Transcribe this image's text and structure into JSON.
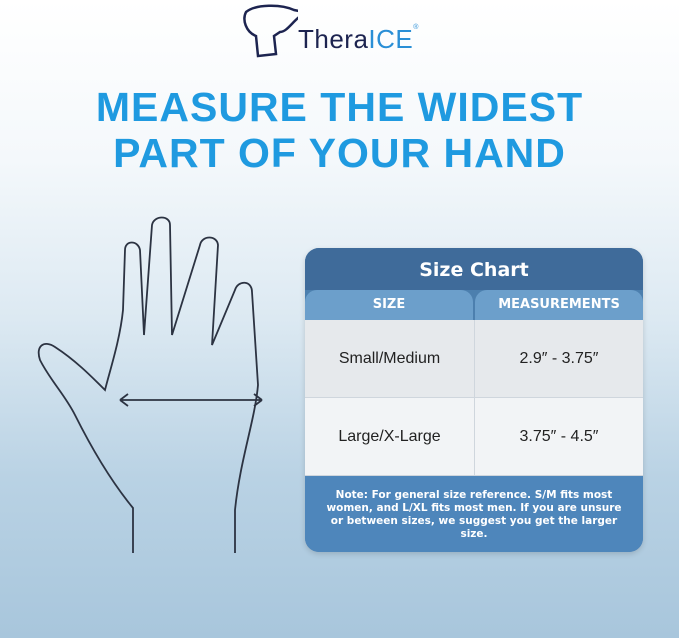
{
  "brand": {
    "name_part1": "Thera",
    "name_part2": "ICE",
    "registered": "®"
  },
  "headline": {
    "line1": "MEASURE THE WIDEST",
    "line2": "PART OF YOUR HAND"
  },
  "size_chart": {
    "title": "Size Chart",
    "columns": [
      "SIZE",
      "MEASUREMENTS"
    ],
    "rows": [
      {
        "size": "Small/Medium",
        "measurement": "2.9″ - 3.75″"
      },
      {
        "size": "Large/X-Large",
        "measurement": "3.75″ - 4.5″"
      }
    ],
    "note": "Note: For general size reference. S/M fits most women, and L/XL fits most men. If you are unsure or between sizes, we suggest you get the larger size."
  },
  "colors": {
    "headline": "#1f9ae0",
    "brand_dark": "#1d2450",
    "table_title": "#3f6b9a",
    "table_header": "#6c9fcb"
  }
}
